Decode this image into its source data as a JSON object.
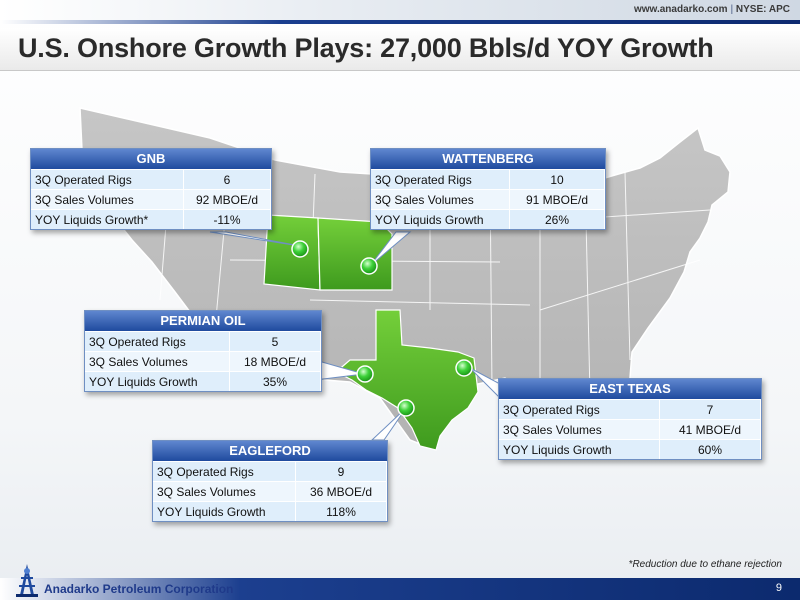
{
  "header": {
    "website": "www.anadarko.com",
    "separator": "|",
    "ticker": "NYSE: APC",
    "title": "U.S. Onshore Growth Plays: 27,000 Bbls/d YOY Growth"
  },
  "panels": {
    "gnb": {
      "name": "GNB",
      "rows": [
        {
          "label": "3Q Operated Rigs",
          "value": "6"
        },
        {
          "label": "3Q Sales Volumes",
          "value": "92 MBOE/d"
        },
        {
          "label": "YOY Liquids Growth*",
          "value": "-11%"
        }
      ]
    },
    "wattenberg": {
      "name": "WATTENBERG",
      "rows": [
        {
          "label": "3Q Operated Rigs",
          "value": "10"
        },
        {
          "label": "3Q Sales Volumes",
          "value": "91 MBOE/d"
        },
        {
          "label": "YOY Liquids Growth",
          "value": "26%"
        }
      ]
    },
    "permian": {
      "name": "PERMIAN OIL",
      "rows": [
        {
          "label": "3Q Operated Rigs",
          "value": "5"
        },
        {
          "label": "3Q Sales Volumes",
          "value": "18 MBOE/d"
        },
        {
          "label": "YOY Liquids Growth",
          "value": "35%"
        }
      ]
    },
    "east_texas": {
      "name": "EAST TEXAS",
      "rows": [
        {
          "label": "3Q Operated Rigs",
          "value": "7"
        },
        {
          "label": "3Q Sales Volumes",
          "value": "41 MBOE/d"
        },
        {
          "label": "YOY Liquids Growth",
          "value": "60%"
        }
      ]
    },
    "eagleford": {
      "name": "EAGLEFORD",
      "rows": [
        {
          "label": "3Q Operated Rigs",
          "value": "9"
        },
        {
          "label": "3Q Sales Volumes",
          "value": "36 MBOE/d"
        },
        {
          "label": "YOY Liquids Growth",
          "value": "118%"
        }
      ]
    }
  },
  "footnote": "*Reduction due to ethane rejection",
  "footer": {
    "company": "Anadarko Petroleum Corporation",
    "page": "9"
  },
  "colors": {
    "brand_blue": "#1f4a9e",
    "map_gray": "#bdbdbd",
    "highlight_green": "#55b82a",
    "marker_green": "#3fd23a"
  },
  "icons": {
    "logo": "anadarko-derrick-logo",
    "marker": "green-location-marker"
  }
}
